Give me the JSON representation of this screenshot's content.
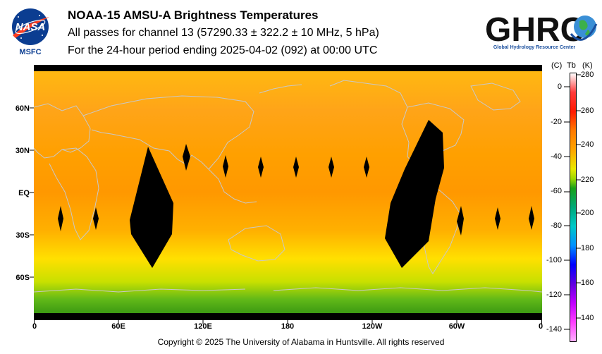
{
  "header": {
    "logo_left_text": "NASA",
    "logo_left_caption": "MSFC",
    "title": "NOAA-15 AMSU-A Brightness Temperatures",
    "subtitle": "All passes for channel 13 (57290.33 ± 322.2 ± 10 MHz, 5 hPa)",
    "period": "For the 24-hour period ending 2025-04-02 (092) at 00:00 UTC",
    "logo_right_text": "GHRC",
    "logo_right_caption": "Global Hydrology Resource Center"
  },
  "map": {
    "lat_labels": [
      "60N",
      "30N",
      "EQ",
      "30S",
      "60S"
    ],
    "lon_labels": [
      "0",
      "60E",
      "120E",
      "180",
      "120W",
      "60W",
      "0"
    ]
  },
  "colorbar": {
    "unit_c": "(C)",
    "unit_tb": "Tb",
    "unit_k": "(K)",
    "celsius_ticks": [
      "0",
      "-20",
      "-40",
      "-60",
      "-80",
      "-100",
      "-120",
      "-140"
    ],
    "kelvin_ticks": [
      "280",
      "260",
      "240",
      "220",
      "200",
      "180",
      "160",
      "140"
    ],
    "colors": {
      "k280": "#ffffff",
      "k270": "#ff3a3a",
      "k260": "#ff1a00",
      "k250": "#ff7a00",
      "k240": "#ffa500",
      "k230": "#e8e800",
      "k225": "#9ed800",
      "k220": "#18a018",
      "k210": "#00a878",
      "k200": "#00c8c8",
      "k190": "#0090ff",
      "k180": "#0000ff",
      "k170": "#6000e0",
      "k160": "#c000ff",
      "k150": "#ff40ff",
      "k140": "#ffb0ff"
    }
  },
  "footer": {
    "copyright": "Copyright © 2025 The University of Alabama in Huntsville.  All rights reserved"
  }
}
